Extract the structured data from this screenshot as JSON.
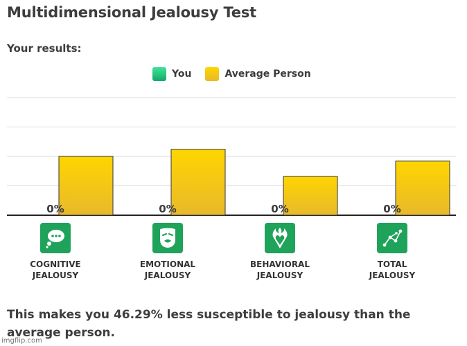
{
  "page": {
    "title": "Multidimensional Jealousy Test",
    "subtitle": "Your results:",
    "footer": "This makes you 46.29% less susceptible to jealousy than the average person.",
    "watermark": "imgflip.com"
  },
  "legend": [
    {
      "label": "You",
      "color": "#22c07a"
    },
    {
      "label": "Average Person",
      "color": "#f2c400"
    }
  ],
  "categories": [
    {
      "label": "COGNITIVE\nJEALOUSY",
      "icon": "thought-bubble-icon"
    },
    {
      "label": "EMOTIONAL\nJEALOUSY",
      "icon": "mask-face-icon"
    },
    {
      "label": "BEHAVIORAL\nJEALOUSY",
      "icon": "flaming-heart-icon"
    },
    {
      "label": "TOTAL\nJEALOUSY",
      "icon": "constellation-icon"
    }
  ],
  "chart_data": {
    "type": "bar",
    "categories": [
      "COGNITIVE JEALOUSY",
      "EMOTIONAL JEALOUSY",
      "BEHAVIORAL JEALOUSY",
      "TOTAL JEALOUSY"
    ],
    "series": [
      {
        "name": "You",
        "values": [
          0,
          0,
          0,
          0
        ],
        "labels": [
          "0%",
          "0%",
          "0%",
          "0%"
        ],
        "color": "#22c07a"
      },
      {
        "name": "Average Person",
        "values": [
          50,
          56,
          33,
          46
        ],
        "color": "#f2c400"
      }
    ],
    "ylim": [
      0,
      100
    ],
    "grid": true,
    "legend_position": "top"
  }
}
